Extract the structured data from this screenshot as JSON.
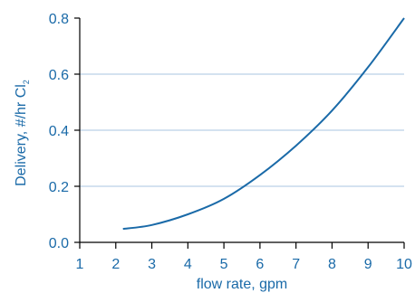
{
  "chart_data": {
    "type": "line",
    "xlabel": "flow rate, gpm",
    "ylabel_main": "Delivery, #/hr Cl",
    "ylabel_sub": "2",
    "xlim": [
      1,
      10
    ],
    "ylim": [
      0,
      0.8
    ],
    "x_ticks": [
      "1",
      "2",
      "3",
      "4",
      "5",
      "6",
      "7",
      "8",
      "9",
      "10"
    ],
    "y_ticks": [
      "0.0",
      "0.2",
      "0.4",
      "0.6",
      "0.8"
    ],
    "grid": "horizontal",
    "series": [
      {
        "x": [
          2.2,
          3.0,
          4.0,
          5.0,
          6.0,
          7.0,
          8.0,
          9.0,
          10.0
        ],
        "y": [
          0.048,
          0.062,
          0.1,
          0.155,
          0.24,
          0.345,
          0.47,
          0.625,
          0.8
        ]
      }
    ]
  },
  "colors": {
    "line": "#1a6aa8",
    "grid": "#a9c6e0",
    "axis": "#000000",
    "text": "#1a6aa8"
  }
}
